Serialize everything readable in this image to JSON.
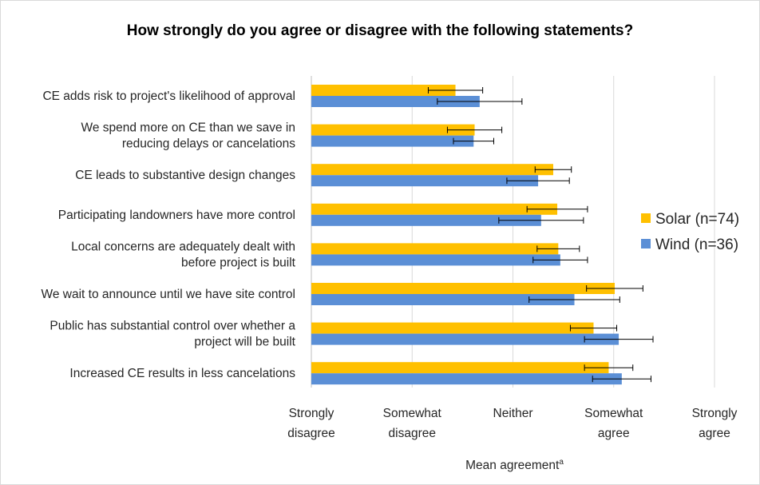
{
  "chart_data": {
    "type": "bar",
    "orientation": "horizontal",
    "title": "How strongly do you agree or disagree with the following statements?",
    "xlabel": "Mean agreement",
    "xlabel_superscript": "a",
    "xlim": [
      1,
      5
    ],
    "xticks": [
      {
        "value": 1,
        "lines": [
          "Strongly",
          "disagree"
        ]
      },
      {
        "value": 2,
        "lines": [
          "Somewhat",
          "disagree"
        ]
      },
      {
        "value": 3,
        "lines": [
          "Neither"
        ]
      },
      {
        "value": 4,
        "lines": [
          "Somewhat",
          "agree"
        ]
      },
      {
        "value": 5,
        "lines": [
          "Strongly",
          "agree"
        ]
      }
    ],
    "grid": "vertical",
    "legend": "right",
    "categories": [
      [
        "CE adds risk to project's likelihood of approval"
      ],
      [
        "We spend more on CE than we save in",
        "reducing delays or cancelations"
      ],
      [
        "CE leads to substantive design changes"
      ],
      [
        "Participating landowners have more control"
      ],
      [
        "Local concerns are adequately dealt with",
        "before project is built"
      ],
      [
        "We wait to announce until we have site control"
      ],
      [
        "Public has substantial control over whether a",
        "project will be built"
      ],
      [
        "Increased CE results in less cancelations"
      ]
    ],
    "series": [
      {
        "name": "Solar (n=74)",
        "color": "#FFC000",
        "values": [
          2.43,
          2.62,
          3.4,
          3.44,
          3.45,
          4.01,
          3.8,
          3.95
        ],
        "errors": [
          0.27,
          0.27,
          0.18,
          0.3,
          0.21,
          0.28,
          0.23,
          0.24
        ]
      },
      {
        "name": "Wind (n=36)",
        "color": "#5B8FD6",
        "values": [
          2.67,
          2.61,
          3.25,
          3.28,
          3.47,
          3.61,
          4.05,
          4.08
        ],
        "errors": [
          0.42,
          0.2,
          0.31,
          0.42,
          0.27,
          0.45,
          0.34,
          0.29
        ]
      }
    ]
  }
}
